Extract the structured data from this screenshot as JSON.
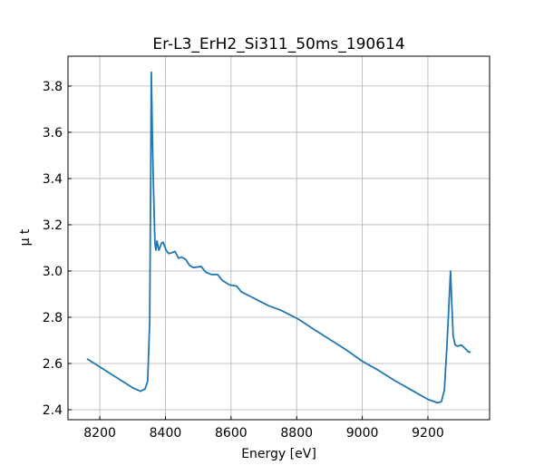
{
  "chart_data": {
    "type": "line",
    "title": "Er-L3_ErH2_Si311_50ms_190614",
    "xlabel": "Energy [eV]",
    "ylabel": "μ t",
    "xlim": [
      8103,
      9388
    ],
    "ylim": [
      2.357,
      3.929
    ],
    "xticks": [
      8200,
      8400,
      8600,
      8800,
      9000,
      9200
    ],
    "yticks": [
      2.4,
      2.6,
      2.8,
      3.0,
      3.2,
      3.4,
      3.6,
      3.8
    ],
    "xtick_labels": [
      "8200",
      "8400",
      "8600",
      "8800",
      "9000",
      "9200"
    ],
    "ytick_labels": [
      "2.4",
      "2.6",
      "2.8",
      "3.0",
      "3.2",
      "3.4",
      "3.6",
      "3.8"
    ],
    "grid": true,
    "color": "#1f77b4",
    "series": [
      {
        "name": "mu t",
        "x": [
          8161,
          8200,
          8250,
          8300,
          8324,
          8338,
          8346,
          8352,
          8355,
          8357,
          8360,
          8363,
          8368,
          8371,
          8374,
          8380,
          8388,
          8393,
          8402,
          8410,
          8421,
          8429,
          8440,
          8449,
          8462,
          8473,
          8485,
          8509,
          8523,
          8540,
          8559,
          8573,
          8595,
          8617,
          8631,
          8659,
          8686,
          8714,
          8752,
          8780,
          8807,
          8850,
          8900,
          8950,
          9000,
          9050,
          9100,
          9150,
          9200,
          9230,
          9241,
          9250,
          9258,
          9264,
          9269,
          9273,
          9277,
          9283,
          9291,
          9302,
          9313,
          9324,
          9330
        ],
        "y": [
          2.62,
          2.585,
          2.54,
          2.495,
          2.48,
          2.49,
          2.525,
          2.78,
          3.4,
          3.86,
          3.6,
          3.39,
          3.12,
          3.09,
          3.13,
          3.09,
          3.12,
          3.125,
          3.09,
          3.075,
          3.08,
          3.085,
          3.055,
          3.06,
          3.05,
          3.025,
          3.015,
          3.02,
          2.995,
          2.985,
          2.985,
          2.96,
          2.94,
          2.935,
          2.91,
          2.89,
          2.87,
          2.85,
          2.83,
          2.81,
          2.79,
          2.75,
          2.705,
          2.66,
          2.61,
          2.57,
          2.525,
          2.485,
          2.445,
          2.43,
          2.435,
          2.485,
          2.68,
          2.85,
          3.0,
          2.85,
          2.72,
          2.68,
          2.675,
          2.68,
          2.665,
          2.65,
          2.65
        ]
      }
    ]
  }
}
